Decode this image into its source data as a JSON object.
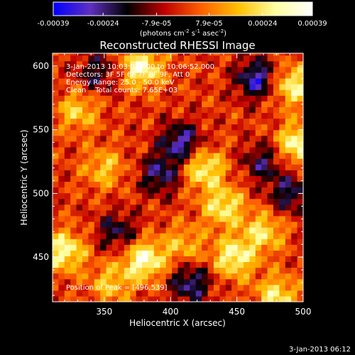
{
  "chart_data": {
    "type": "heatmap",
    "title": "Reconstructed RHESSI Image",
    "xlabel": "Heliocentric X (arcsec)",
    "ylabel": "Heliocentric Y (arcsec)",
    "xlim": [
      311,
      500
    ],
    "ylim": [
      415,
      610
    ],
    "x_ticks": [
      "350",
      "400",
      "450",
      "500"
    ],
    "y_ticks": [
      "450",
      "500",
      "550",
      "600"
    ],
    "x_tick_values": [
      350,
      400,
      450,
      500
    ],
    "y_tick_values": [
      450,
      500,
      550,
      600
    ],
    "colorbar": {
      "range": [
        -0.00039,
        0.00039
      ],
      "tick_labels": [
        "-0.00039",
        "-0.00024",
        "-7.9e-05",
        "7.9e-05",
        "0.00024",
        "0.00039"
      ],
      "tick_values": [
        -0.00039,
        -0.00024,
        -7.9e-05,
        7.9e-05,
        0.00024,
        0.00039
      ],
      "units_label": "(photons cm",
      "units_exp1": "-2",
      "units_mid": " s",
      "units_exp2": "-1",
      "units_tail": " asec",
      "units_exp3": "-2",
      "units_close": ")",
      "colors": [
        "#0000ff",
        "#6030c0",
        "#000000",
        "#c00000",
        "#ff6000",
        "#ffc000",
        "#ffffa0",
        "#ffffff"
      ]
    },
    "annotations": [
      "3-Jan-2013 10:03:08.000 to 10:06:52.000",
      "Detectors: 3F 5F 6F 7F 8F 9F, Att 0",
      "Energy Range: 25.0 - 50.0 keV",
      "Clean    Total counts: 7.65E+03"
    ],
    "peak_label": "Position of Peak = [496,539]",
    "peak": [
      496,
      539
    ],
    "bright_sources": [
      {
        "x": 378,
        "y": 599,
        "level": 0.95
      },
      {
        "x": 380,
        "y": 448,
        "level": 1.0
      },
      {
        "x": 320,
        "y": 455,
        "level": 0.9
      },
      {
        "x": 425,
        "y": 520,
        "level": 0.85
      },
      {
        "x": 440,
        "y": 490,
        "level": 0.8
      },
      {
        "x": 448,
        "y": 450,
        "level": 0.9
      },
      {
        "x": 492,
        "y": 585,
        "level": 0.85
      },
      {
        "x": 496,
        "y": 539,
        "level": 0.95
      },
      {
        "x": 330,
        "y": 565,
        "level": 0.6
      },
      {
        "x": 350,
        "y": 520,
        "level": 0.55
      },
      {
        "x": 470,
        "y": 470,
        "level": 0.7
      },
      {
        "x": 480,
        "y": 420,
        "level": 0.75
      },
      {
        "x": 410,
        "y": 460,
        "level": 0.5
      },
      {
        "x": 355,
        "y": 430,
        "level": 0.55
      }
    ],
    "dim_sources": [
      {
        "x": 465,
        "y": 590,
        "level": -0.9
      },
      {
        "x": 408,
        "y": 540,
        "level": -0.85
      },
      {
        "x": 392,
        "y": 515,
        "level": -0.7
      },
      {
        "x": 360,
        "y": 470,
        "level": -0.6
      },
      {
        "x": 415,
        "y": 430,
        "level": -0.75
      },
      {
        "x": 470,
        "y": 525,
        "level": -0.6
      },
      {
        "x": 345,
        "y": 595,
        "level": -0.55
      },
      {
        "x": 490,
        "y": 500,
        "level": -0.65
      }
    ]
  },
  "footer_date": "3-Jan-2013 06:12"
}
